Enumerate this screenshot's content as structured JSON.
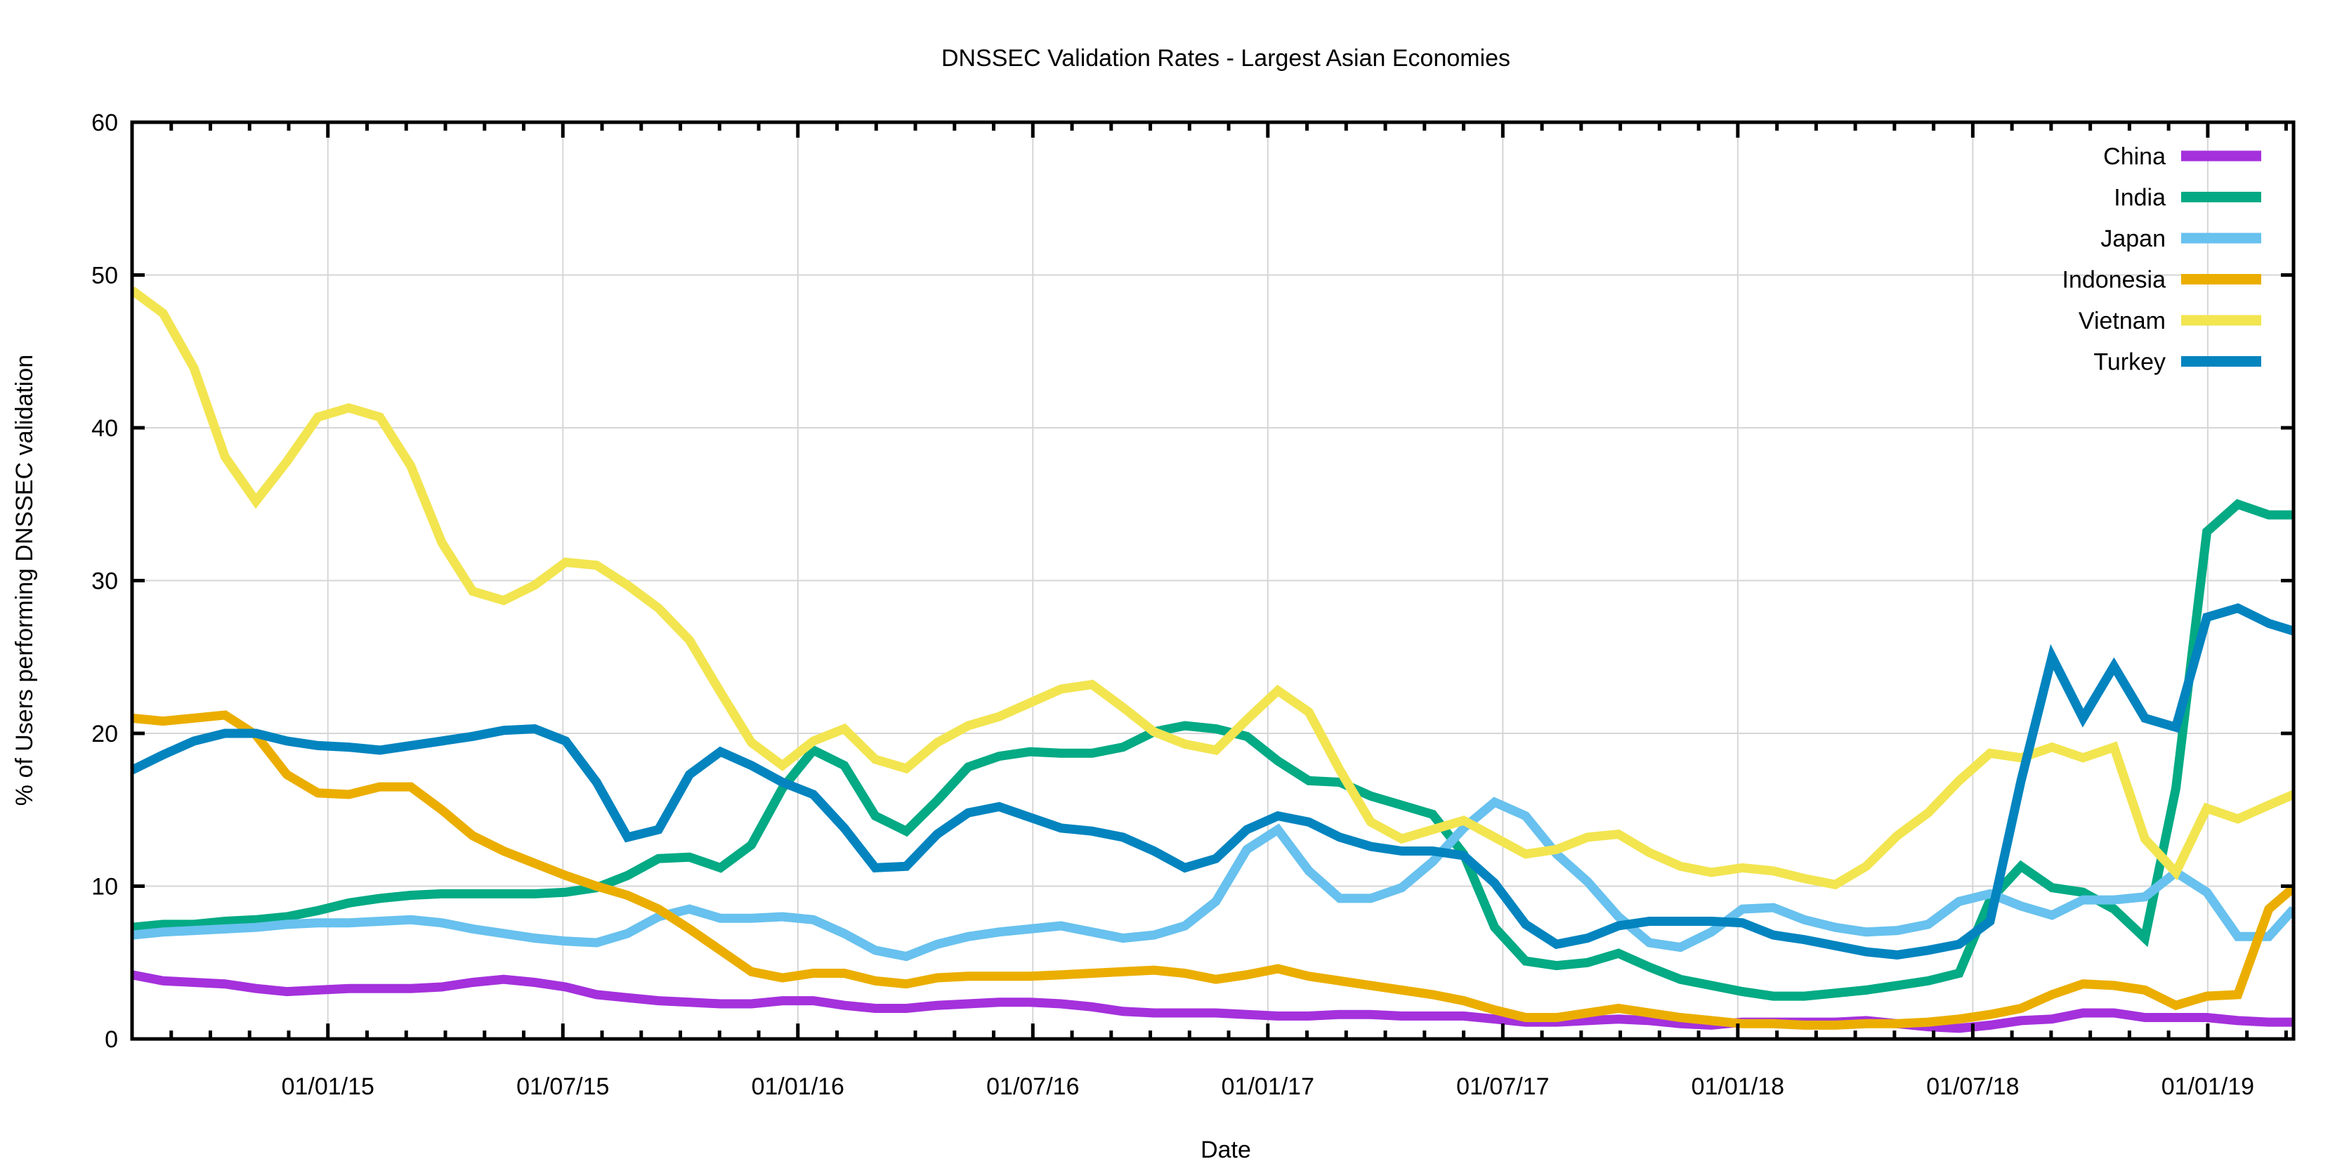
{
  "chart_data": {
    "type": "line",
    "title": "DNSSEC Validation Rates - Largest Asian Economies",
    "xlabel": "Date",
    "ylabel": "% of Users performing DNSSEC validation",
    "ylim": [
      0,
      60
    ],
    "yticks": [
      0,
      10,
      20,
      30,
      40,
      50,
      60
    ],
    "x_unit": "months since 01/08/14",
    "xlim": [
      0,
      55.19
    ],
    "xticks": [
      {
        "label": "01/01/15",
        "month": 5
      },
      {
        "label": "01/07/15",
        "month": 11
      },
      {
        "label": "01/01/16",
        "month": 17
      },
      {
        "label": "01/07/16",
        "month": 23
      },
      {
        "label": "01/01/17",
        "month": 29
      },
      {
        "label": "01/07/17",
        "month": 35
      },
      {
        "label": "01/01/18",
        "month": 41
      },
      {
        "label": "01/07/18",
        "month": 47
      },
      {
        "label": "01/01/19",
        "month": 53
      }
    ],
    "minor_tick_interval_months": 1,
    "grid": true,
    "legend_position": "top-right",
    "x_sample_step_months": 0.7907,
    "x_last_months": 55.19,
    "series": [
      {
        "name": "China",
        "color": "#a431dc",
        "values": [
          4.2,
          3.8,
          3.7,
          3.6,
          3.3,
          3.1,
          3.2,
          3.3,
          3.3,
          3.3,
          3.4,
          3.7,
          3.9,
          3.7,
          3.4,
          2.9,
          2.7,
          2.5,
          2.4,
          2.3,
          2.3,
          2.5,
          2.5,
          2.2,
          2.0,
          2.0,
          2.2,
          2.3,
          2.4,
          2.4,
          2.3,
          2.1,
          1.8,
          1.7,
          1.7,
          1.7,
          1.6,
          1.5,
          1.5,
          1.6,
          1.6,
          1.5,
          1.5,
          1.5,
          1.3,
          1.1,
          1.1,
          1.2,
          1.3,
          1.2,
          1.0,
          0.9,
          1.1,
          1.1,
          1.1,
          1.1,
          1.2,
          1.0,
          0.8,
          0.7,
          0.9,
          1.2,
          1.3,
          1.7,
          1.7,
          1.4,
          1.4,
          1.4,
          1.2,
          1.1,
          1.1
        ]
      },
      {
        "name": "India",
        "color": "#03aa84",
        "values": [
          7.3,
          7.5,
          7.5,
          7.7,
          7.8,
          8.0,
          8.4,
          8.9,
          9.2,
          9.4,
          9.5,
          9.5,
          9.5,
          9.5,
          9.6,
          9.9,
          10.7,
          11.8,
          11.9,
          11.2,
          12.7,
          16.4,
          18.9,
          17.9,
          14.6,
          13.6,
          15.6,
          17.8,
          18.5,
          18.8,
          18.7,
          18.7,
          19.1,
          20.1,
          20.5,
          20.3,
          19.8,
          18.2,
          16.9,
          16.8,
          15.9,
          15.3,
          14.7,
          12.1,
          7.3,
          5.1,
          4.8,
          5.0,
          5.6,
          4.7,
          3.9,
          3.5,
          3.1,
          2.8,
          2.8,
          3.0,
          3.2,
          3.5,
          3.8,
          4.3,
          9.1,
          11.3,
          9.9,
          9.6,
          8.5,
          6.6,
          16.4,
          33.2,
          35.0,
          34.3,
          34.3
        ]
      },
      {
        "name": "Japan",
        "color": "#68c1ee",
        "values": [
          6.8,
          7.0,
          7.1,
          7.2,
          7.3,
          7.5,
          7.6,
          7.6,
          7.7,
          7.8,
          7.6,
          7.2,
          6.9,
          6.6,
          6.4,
          6.3,
          6.9,
          8.0,
          8.5,
          7.9,
          7.9,
          8.0,
          7.8,
          6.9,
          5.8,
          5.4,
          6.2,
          6.7,
          7.0,
          7.2,
          7.4,
          7.0,
          6.6,
          6.8,
          7.4,
          9.0,
          12.4,
          13.7,
          11.0,
          9.2,
          9.2,
          9.9,
          11.6,
          13.8,
          15.5,
          14.6,
          12.1,
          10.3,
          8.0,
          6.3,
          6.0,
          7.0,
          8.5,
          8.6,
          7.8,
          7.3,
          7.0,
          7.1,
          7.5,
          9.0,
          9.5,
          8.7,
          8.1,
          9.1,
          9.1,
          9.3,
          10.9,
          9.6,
          6.7,
          6.7,
          8.5
        ]
      },
      {
        "name": "Indonesia",
        "color": "#ebae00",
        "values": [
          21.0,
          20.8,
          21.0,
          21.2,
          19.9,
          17.3,
          16.1,
          16.0,
          16.5,
          16.5,
          15.0,
          13.3,
          12.3,
          11.5,
          10.7,
          10.0,
          9.4,
          8.5,
          7.2,
          5.8,
          4.4,
          4.0,
          4.3,
          4.3,
          3.8,
          3.6,
          4.0,
          4.1,
          4.1,
          4.1,
          4.2,
          4.3,
          4.4,
          4.5,
          4.3,
          3.9,
          4.2,
          4.6,
          4.1,
          3.8,
          3.5,
          3.2,
          2.9,
          2.5,
          1.9,
          1.4,
          1.4,
          1.7,
          2.0,
          1.7,
          1.4,
          1.2,
          1.0,
          1.0,
          0.9,
          0.9,
          1.0,
          1.0,
          1.1,
          1.3,
          1.6,
          2.0,
          2.9,
          3.6,
          3.5,
          3.2,
          2.2,
          2.8,
          2.9,
          8.5,
          9.9
        ]
      },
      {
        "name": "Vietnam",
        "color": "#f2e550",
        "values": [
          49.0,
          47.5,
          43.9,
          38.1,
          35.2,
          37.8,
          40.7,
          41.3,
          40.7,
          37.5,
          32.5,
          29.3,
          28.7,
          29.7,
          31.2,
          31.0,
          29.7,
          28.2,
          26.1,
          22.7,
          19.4,
          17.9,
          19.5,
          20.3,
          18.3,
          17.7,
          19.4,
          20.5,
          21.1,
          22.0,
          22.9,
          23.2,
          21.7,
          20.1,
          19.3,
          18.9,
          20.9,
          22.8,
          21.4,
          17.6,
          14.2,
          13.1,
          13.7,
          14.3,
          13.2,
          12.1,
          12.4,
          13.2,
          13.4,
          12.2,
          11.3,
          10.9,
          11.2,
          11.0,
          10.5,
          10.1,
          11.3,
          13.3,
          14.8,
          16.9,
          18.7,
          18.4,
          19.1,
          18.4,
          19.1,
          13.1,
          10.9,
          15.1,
          14.4,
          15.3,
          16.0
        ]
      },
      {
        "name": "Turkey",
        "color": "#0384bf",
        "values": [
          17.6,
          18.6,
          19.5,
          20.0,
          20.0,
          19.5,
          19.2,
          19.1,
          18.9,
          19.2,
          19.5,
          19.8,
          20.2,
          20.3,
          19.5,
          16.8,
          13.2,
          13.7,
          17.3,
          18.8,
          17.9,
          16.8,
          16.0,
          13.8,
          11.2,
          11.3,
          13.4,
          14.8,
          15.2,
          14.5,
          13.8,
          13.6,
          13.2,
          12.3,
          11.2,
          11.8,
          13.7,
          14.6,
          14.2,
          13.2,
          12.6,
          12.3,
          12.3,
          12.0,
          10.2,
          7.5,
          6.2,
          6.6,
          7.4,
          7.7,
          7.7,
          7.7,
          7.6,
          6.8,
          6.5,
          6.1,
          5.7,
          5.5,
          5.8,
          6.2,
          7.7,
          16.9,
          25.0,
          21.0,
          24.4,
          21.0,
          20.4,
          27.6,
          28.2,
          27.2,
          26.7
        ]
      }
    ]
  }
}
